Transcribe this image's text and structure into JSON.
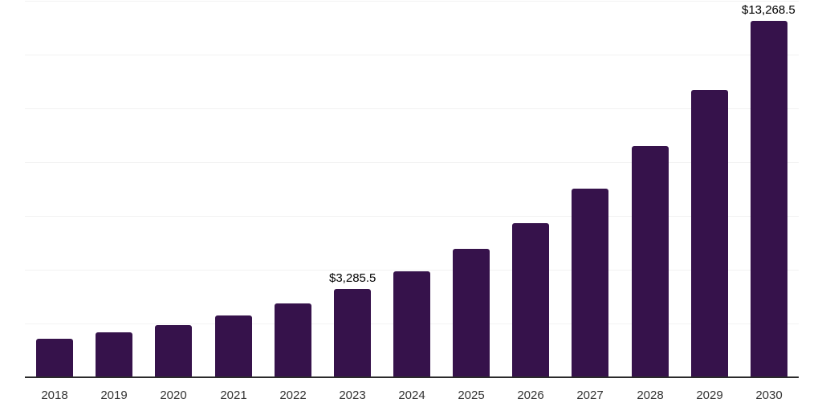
{
  "chart_data": {
    "type": "bar",
    "title": "",
    "xlabel": "",
    "ylabel": "",
    "categories": [
      "2018",
      "2019",
      "2020",
      "2021",
      "2022",
      "2023",
      "2024",
      "2025",
      "2026",
      "2027",
      "2028",
      "2029",
      "2030"
    ],
    "values": [
      1430,
      1670,
      1940,
      2300,
      2740,
      3285.5,
      3930,
      4765,
      5720,
      7015,
      8605,
      10680,
      13268.5
    ],
    "labeled_points": [
      {
        "category": "2023",
        "text": "$3,285.5"
      },
      {
        "category": "2030",
        "text": "$13,268.5"
      }
    ],
    "ylim": [
      0,
      14000
    ],
    "gridline_step": 2000,
    "grid": true,
    "legend": false,
    "colors": {
      "bar": "#36124B",
      "axis_line": "#2b2b2b",
      "gridline": "#f2f2f2",
      "tick_label": "#333333",
      "value_label": "#000000",
      "background": "#ffffff"
    }
  }
}
